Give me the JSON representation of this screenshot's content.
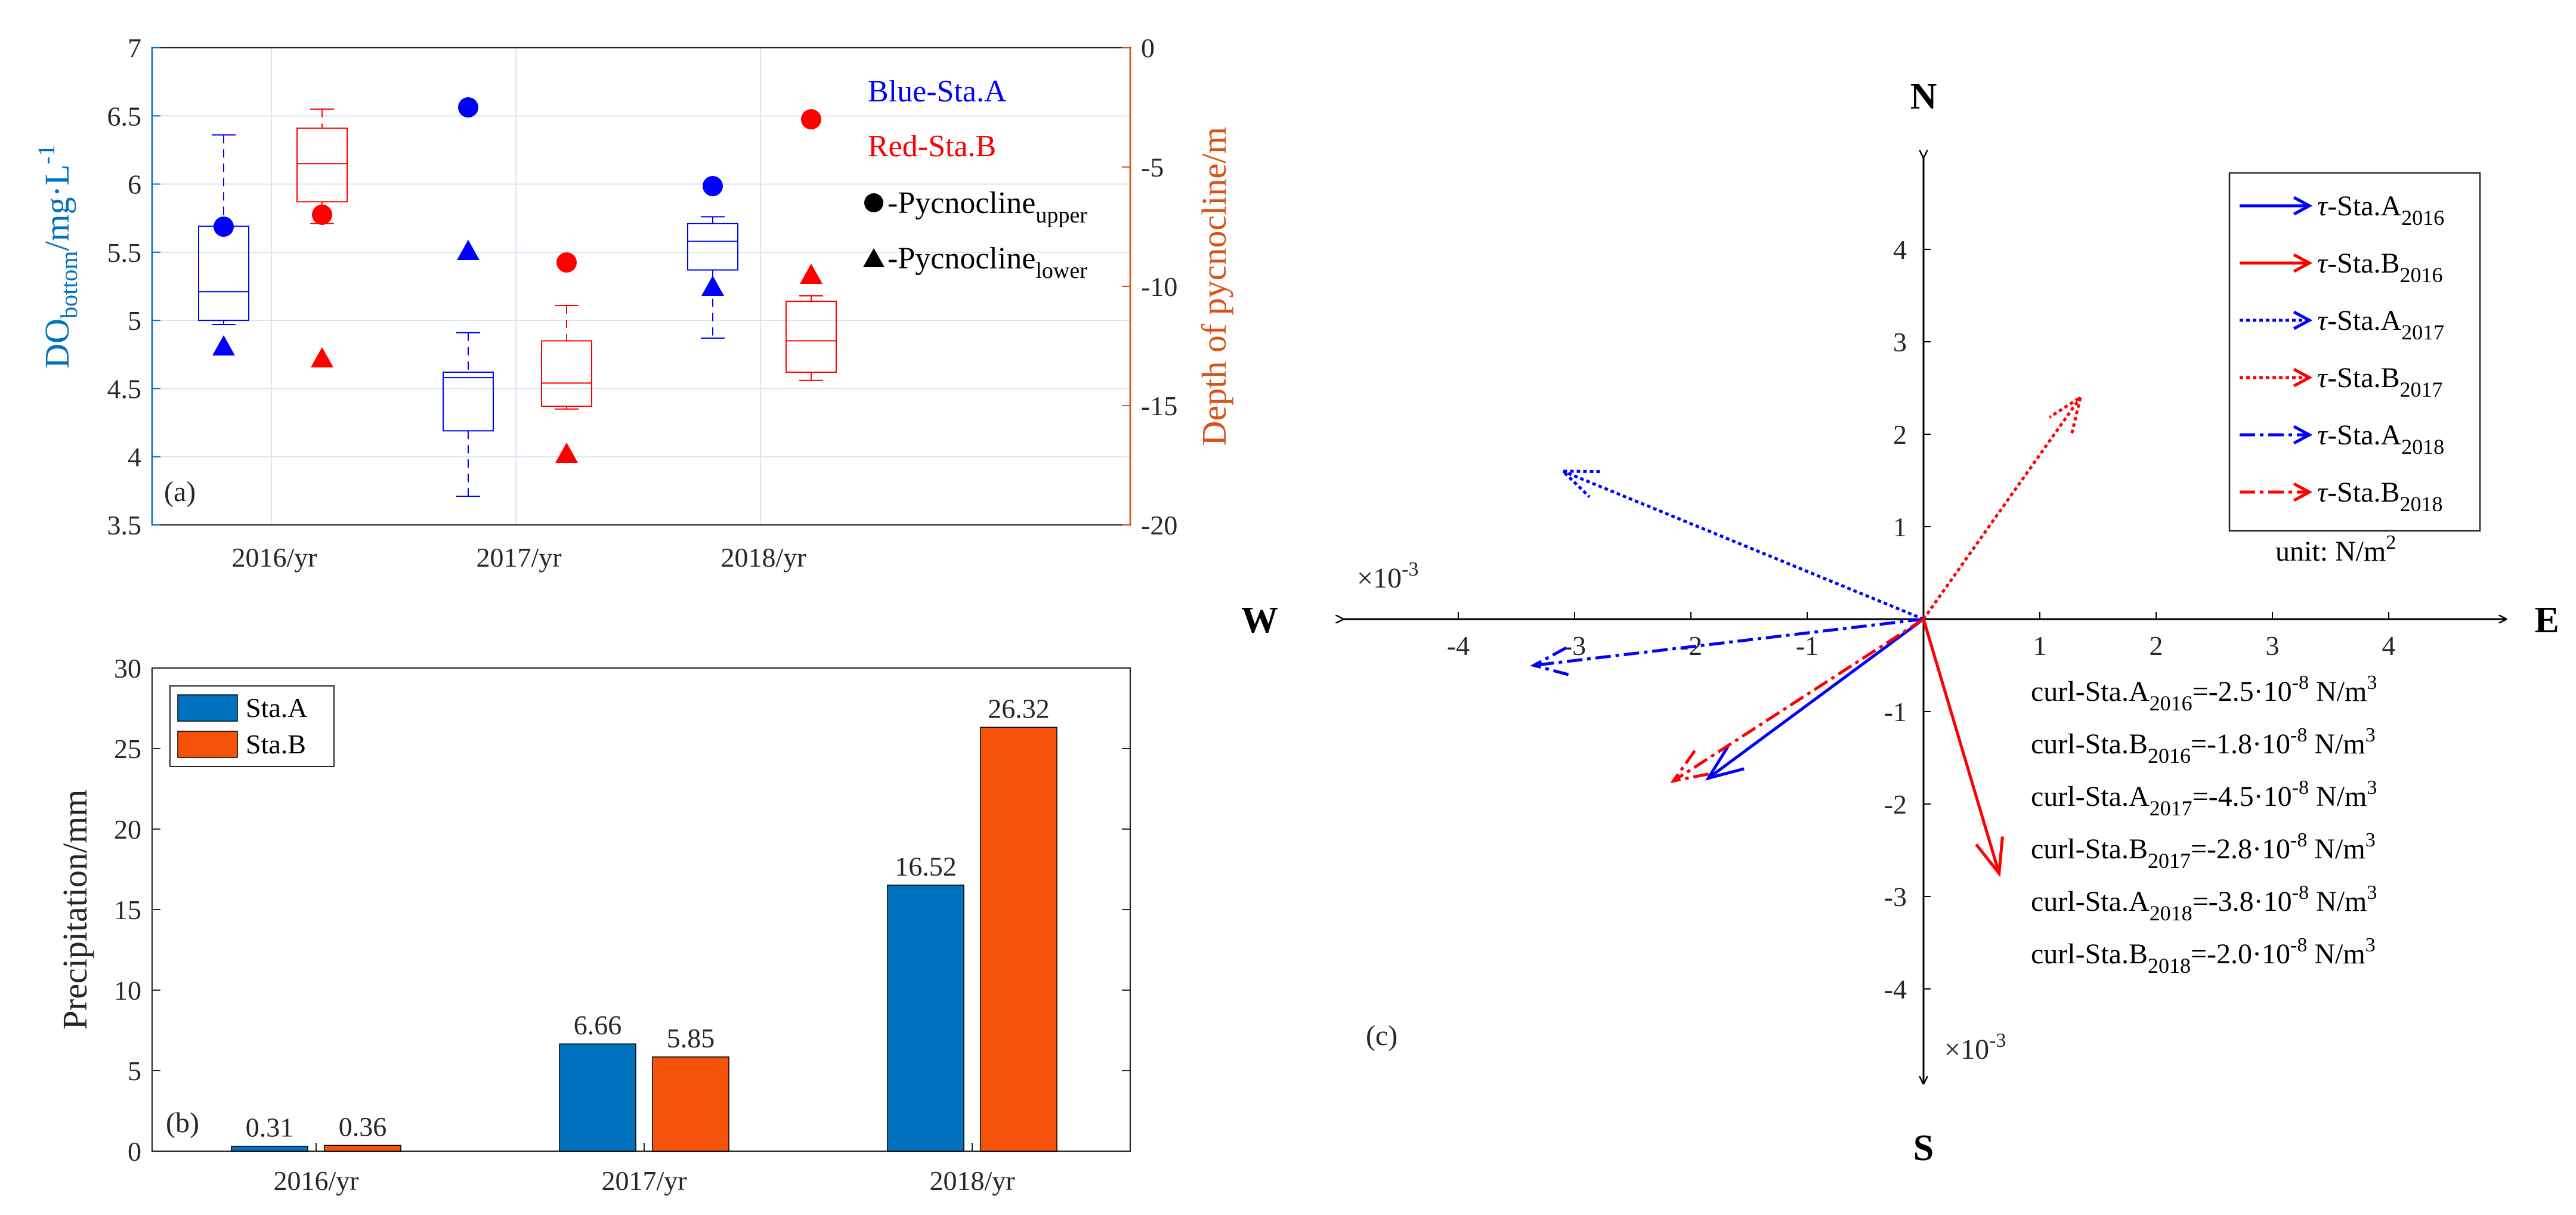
{
  "chart_data": [
    {
      "type": "box",
      "panel_label": "(a)",
      "categories": [
        "2016/yr",
        "2017/yr",
        "2018/yr"
      ],
      "ylabel_left": {
        "base": "DO",
        "sub": "bottom",
        "rest": "/mg·L",
        "sup": "-1"
      },
      "ylabel_right": "Depth of pycnocline/m",
      "ylim_left": [
        3.5,
        7
      ],
      "yticks_left": [
        "3.5",
        "4",
        "4.5",
        "5",
        "5.5",
        "6",
        "6.5",
        "7"
      ],
      "ylim_right": [
        -20,
        0
      ],
      "yticks_right": [
        "-20",
        "-15",
        "-10",
        "-5",
        "0"
      ],
      "grid": true,
      "legend": {
        "blue_label": "Blue-Sta.A",
        "red_label": "Red-Sta.B",
        "upper_prefix": "-Pycnocline",
        "upper_sub": "upper",
        "lower_prefix": "-Pycnocline",
        "lower_sub": "lower"
      },
      "colors": {
        "sta_a": "#0000ff",
        "sta_b": "#ff0000",
        "left_axis": "#0072bd",
        "right_axis": "#d95319"
      },
      "series": [
        {
          "station": "A",
          "boxes": [
            {
              "whisker_low": 4.97,
              "q1": 5.0,
              "median": 5.21,
              "q3": 5.69,
              "whisker_high": 6.36
            },
            {
              "whisker_low": 3.71,
              "q1": 4.19,
              "median": 4.58,
              "q3": 4.62,
              "whisker_high": 4.91
            },
            {
              "whisker_low": 4.87,
              "q1": 5.37,
              "median": 5.58,
              "q3": 5.71,
              "whisker_high": 5.76
            }
          ],
          "pycnocline_upper_depth": [
            -7.5,
            -2.5,
            -5.8
          ],
          "pycnocline_lower_depth": [
            -12.5,
            -8.5,
            -10.0
          ]
        },
        {
          "station": "B",
          "boxes": [
            {
              "whisker_low": 5.71,
              "q1": 5.87,
              "median": 6.15,
              "q3": 6.41,
              "whisker_high": 6.55
            },
            {
              "whisker_low": 4.35,
              "q1": 4.37,
              "median": 4.54,
              "q3": 4.85,
              "whisker_high": 5.11
            },
            {
              "whisker_low": 4.56,
              "q1": 4.62,
              "median": 4.85,
              "q3": 5.14,
              "whisker_high": 5.18
            }
          ],
          "pycnocline_upper_depth": [
            -7.0,
            -9.0,
            -3.0
          ],
          "pycnocline_lower_depth": [
            -13.0,
            -17.0,
            -9.5
          ]
        }
      ]
    },
    {
      "type": "bar",
      "panel_label": "(b)",
      "categories": [
        "2016/yr",
        "2017/yr",
        "2018/yr"
      ],
      "ylabel": "Precipitation/mm",
      "ylim": [
        0,
        30
      ],
      "yticks": [
        "0",
        "5",
        "10",
        "15",
        "20",
        "25",
        "30"
      ],
      "legend_position": "top-left",
      "series": [
        {
          "name": "Sta.A",
          "color": "#0072bd",
          "values": [
            0.31,
            6.66,
            16.52
          ],
          "labels": [
            "0.31",
            "6.66",
            "16.52"
          ]
        },
        {
          "name": "Sta.B",
          "color": "#f55309",
          "values": [
            0.36,
            5.85,
            26.32
          ],
          "labels": [
            "0.36",
            "5.85",
            "26.32"
          ]
        }
      ]
    },
    {
      "type": "vector",
      "panel_label": "(c)",
      "directions": {
        "n": "N",
        "s": "S",
        "e": "E",
        "w": "W"
      },
      "x_multiplier": "×10",
      "x_multiplier_exp": "-3",
      "y_multiplier": "×10",
      "y_multiplier_exp": "-3",
      "xlim": [
        -5,
        5
      ],
      "ylim": [
        -5,
        5
      ],
      "xticks": [
        "-4",
        "-3",
        "-2",
        "-1",
        "1",
        "2",
        "3",
        "4"
      ],
      "yticks": [
        "4",
        "3",
        "2",
        "1",
        "-1",
        "-2",
        "-3",
        "-4"
      ],
      "unit": {
        "text": "unit: N/m",
        "sup": "2"
      },
      "vectors": [
        {
          "tau": "τ",
          "name": "-Sta.A",
          "year": "2016",
          "dx": -1.85,
          "dy": -1.72,
          "color": "#0000ff",
          "style": "solid"
        },
        {
          "tau": "τ",
          "name": "-Sta.B",
          "year": "2016",
          "dx": 0.65,
          "dy": -2.75,
          "color": "#ff0000",
          "style": "solid"
        },
        {
          "tau": "τ",
          "name": "-Sta.A",
          "year": "2017",
          "dx": -3.1,
          "dy": 1.6,
          "color": "#0000ff",
          "style": "dotted"
        },
        {
          "tau": "τ",
          "name": "-Sta.B",
          "year": "2017",
          "dx": 1.35,
          "dy": 2.4,
          "color": "#ff0000",
          "style": "dotted"
        },
        {
          "tau": "τ",
          "name": "-Sta.A",
          "year": "2018",
          "dx": -3.35,
          "dy": -0.5,
          "color": "#0000ff",
          "style": "dashdot"
        },
        {
          "tau": "τ",
          "name": "-Sta.B",
          "year": "2018",
          "dx": -2.15,
          "dy": -1.75,
          "color": "#ff0000",
          "style": "dashdot"
        }
      ],
      "curl": [
        {
          "label": "curl-Sta.A",
          "year": "2016",
          "value": "=-2.5·10",
          "exp": "-8",
          "unit": " N/m",
          "unit_exp": "3"
        },
        {
          "label": "curl-Sta.B",
          "year": "2016",
          "value": "=-1.8·10",
          "exp": "-8",
          "unit": " N/m",
          "unit_exp": "3"
        },
        {
          "label": "curl-Sta.A",
          "year": "2017",
          "value": "=-4.5·10",
          "exp": "-8",
          "unit": " N/m",
          "unit_exp": "3"
        },
        {
          "label": "curl-Sta.B",
          "year": "2017",
          "value": "=-2.8·10",
          "exp": "-8",
          "unit": " N/m",
          "unit_exp": "3"
        },
        {
          "label": "curl-Sta.A",
          "year": "2018",
          "value": "=-3.8·10",
          "exp": "-8",
          "unit": " N/m",
          "unit_exp": "3"
        },
        {
          "label": "curl-Sta.B",
          "year": "2018",
          "value": "=-2.0·10",
          "exp": "-8",
          "unit": " N/m",
          "unit_exp": "3"
        }
      ]
    }
  ]
}
